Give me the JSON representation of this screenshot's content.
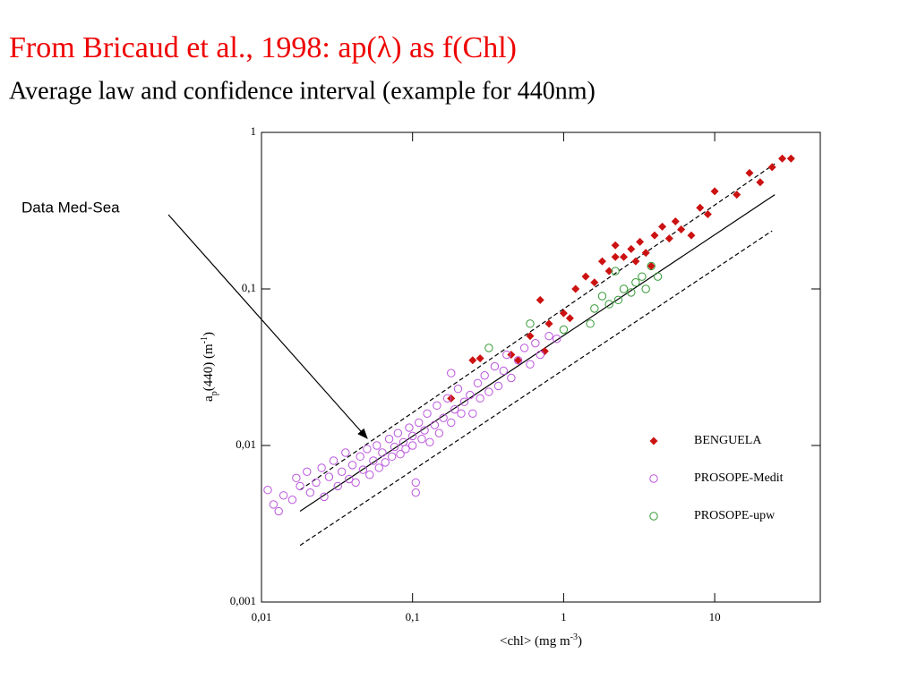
{
  "chart_data": {
    "type": "scatter",
    "title": "From Bricaud et al., 1998:    ap(λ) as f(Chl)",
    "subtitle": "Average law and confidence interval (example for 440nm)",
    "annotation": "Data Med-Sea",
    "xlabel": [
      "<chl> (mg m",
      "-3",
      ")"
    ],
    "ylabel": [
      "a",
      "p",
      "(440) (m",
      "-1",
      ")"
    ],
    "log_x": true,
    "log_y": true,
    "xlim": [
      0.01,
      50
    ],
    "ylim": [
      0.001,
      1
    ],
    "xticks": [
      {
        "value": 0.01,
        "label": "0,01"
      },
      {
        "value": 0.1,
        "label": "0,1"
      },
      1,
      10
    ],
    "yticks": [
      {
        "value": 0.001,
        "label": "0,001"
      },
      {
        "value": 0.01,
        "label": "0,01"
      },
      {
        "value": 0.1,
        "label": "0,1"
      },
      1
    ],
    "legend": "lower right",
    "series": [
      {
        "name": "BENGUELA",
        "color": "#cc1111",
        "marker": "diamond",
        "x": [
          0.25,
          0.28,
          0.45,
          0.5,
          0.6,
          0.7,
          0.75,
          0.8,
          1.0,
          1.1,
          1.2,
          1.4,
          1.6,
          1.8,
          2.0,
          2.2,
          2.5,
          2.8,
          3.0,
          3.2,
          3.5,
          4.0,
          4.5,
          5.0,
          5.5,
          6.0,
          7.0,
          8.0,
          9.0,
          10,
          14,
          17,
          20,
          24,
          28,
          32,
          0.18,
          2.2,
          3.8
        ],
        "y": [
          0.035,
          0.036,
          0.038,
          0.035,
          0.05,
          0.085,
          0.04,
          0.06,
          0.07,
          0.065,
          0.1,
          0.12,
          0.11,
          0.15,
          0.13,
          0.19,
          0.16,
          0.18,
          0.15,
          0.2,
          0.17,
          0.22,
          0.25,
          0.21,
          0.27,
          0.24,
          0.22,
          0.33,
          0.3,
          0.42,
          0.4,
          0.55,
          0.48,
          0.6,
          0.68,
          0.68,
          0.02,
          0.16,
          0.14
        ]
      },
      {
        "name": "PROSOPE-Medit",
        "color": "#bb55dd",
        "marker": "circle",
        "x": [
          0.011,
          0.012,
          0.013,
          0.014,
          0.016,
          0.017,
          0.018,
          0.02,
          0.021,
          0.023,
          0.025,
          0.026,
          0.028,
          0.03,
          0.032,
          0.034,
          0.036,
          0.038,
          0.04,
          0.042,
          0.045,
          0.047,
          0.05,
          0.052,
          0.055,
          0.058,
          0.06,
          0.063,
          0.066,
          0.07,
          0.073,
          0.076,
          0.08,
          0.083,
          0.087,
          0.09,
          0.095,
          0.1,
          0.1,
          0.105,
          0.105,
          0.11,
          0.115,
          0.12,
          0.125,
          0.13,
          0.14,
          0.145,
          0.15,
          0.16,
          0.17,
          0.18,
          0.19,
          0.2,
          0.21,
          0.22,
          0.24,
          0.25,
          0.27,
          0.28,
          0.3,
          0.32,
          0.35,
          0.37,
          0.4,
          0.42,
          0.45,
          0.5,
          0.55,
          0.6,
          0.65,
          0.7,
          0.8,
          0.9,
          0.18
        ],
        "y": [
          0.0052,
          0.0042,
          0.0038,
          0.0048,
          0.0045,
          0.0062,
          0.0055,
          0.0068,
          0.005,
          0.0058,
          0.0072,
          0.0047,
          0.0063,
          0.008,
          0.0055,
          0.0068,
          0.009,
          0.0061,
          0.0075,
          0.0058,
          0.0085,
          0.007,
          0.0095,
          0.0065,
          0.008,
          0.01,
          0.0072,
          0.009,
          0.0078,
          0.011,
          0.0085,
          0.0098,
          0.012,
          0.0088,
          0.0105,
          0.0095,
          0.013,
          0.01,
          0.0115,
          0.005,
          0.0058,
          0.014,
          0.011,
          0.0125,
          0.016,
          0.0105,
          0.0135,
          0.018,
          0.012,
          0.015,
          0.02,
          0.014,
          0.017,
          0.023,
          0.016,
          0.019,
          0.021,
          0.016,
          0.025,
          0.02,
          0.028,
          0.022,
          0.032,
          0.024,
          0.03,
          0.038,
          0.027,
          0.035,
          0.042,
          0.033,
          0.045,
          0.038,
          0.05,
          0.048,
          0.029
        ]
      },
      {
        "name": "PROSOPE-upw",
        "color": "#339933",
        "marker": "circle",
        "x": [
          0.32,
          0.6,
          1.0,
          1.5,
          1.8,
          2.0,
          2.3,
          2.5,
          2.8,
          3.0,
          3.3,
          3.5,
          3.8,
          4.2,
          2.2,
          1.6
        ],
        "y": [
          0.042,
          0.06,
          0.055,
          0.06,
          0.09,
          0.08,
          0.085,
          0.1,
          0.095,
          0.11,
          0.12,
          0.1,
          0.14,
          0.12,
          0.13,
          0.075
        ]
      }
    ],
    "fit_lines": [
      {
        "style": "solid",
        "x": [
          0.018,
          25
        ],
        "y": [
          0.0038,
          0.4
        ]
      },
      {
        "style": "dashed",
        "x": [
          0.018,
          25
        ],
        "y": [
          0.0052,
          0.63
        ]
      },
      {
        "style": "dashed",
        "x": [
          0.018,
          24
        ],
        "y": [
          0.0023,
          0.235
        ]
      }
    ]
  }
}
